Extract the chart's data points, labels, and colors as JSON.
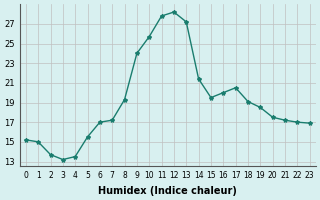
{
  "x": [
    0,
    1,
    2,
    3,
    4,
    5,
    6,
    7,
    8,
    9,
    10,
    11,
    12,
    13,
    14,
    15,
    16,
    17,
    18,
    19,
    20,
    21,
    22,
    23
  ],
  "y": [
    15.2,
    15.0,
    13.7,
    13.2,
    13.5,
    15.5,
    17.0,
    17.2,
    19.3,
    24.0,
    25.7,
    27.8,
    28.2,
    27.2,
    21.4,
    19.5,
    20.0,
    20.5,
    19.1,
    18.5,
    17.5,
    17.2,
    17.0,
    16.9
  ],
  "xlabel": "Humidex (Indice chaleur)",
  "ylabel": "",
  "ylim": [
    12.5,
    29.0
  ],
  "xlim": [
    -0.5,
    23.5
  ],
  "yticks": [
    13,
    15,
    17,
    19,
    21,
    23,
    25,
    27
  ],
  "xtick_labels": [
    "0",
    "1",
    "2",
    "3",
    "4",
    "5",
    "6",
    "7",
    "8",
    "9",
    "10",
    "11",
    "12",
    "13",
    "14",
    "15",
    "16",
    "17",
    "18",
    "19",
    "20",
    "21",
    "22",
    "23"
  ],
  "line_color": "#1a7d6e",
  "marker": "*",
  "bg_color": "#d8f0f0",
  "grid_color": "#c0c0c0"
}
